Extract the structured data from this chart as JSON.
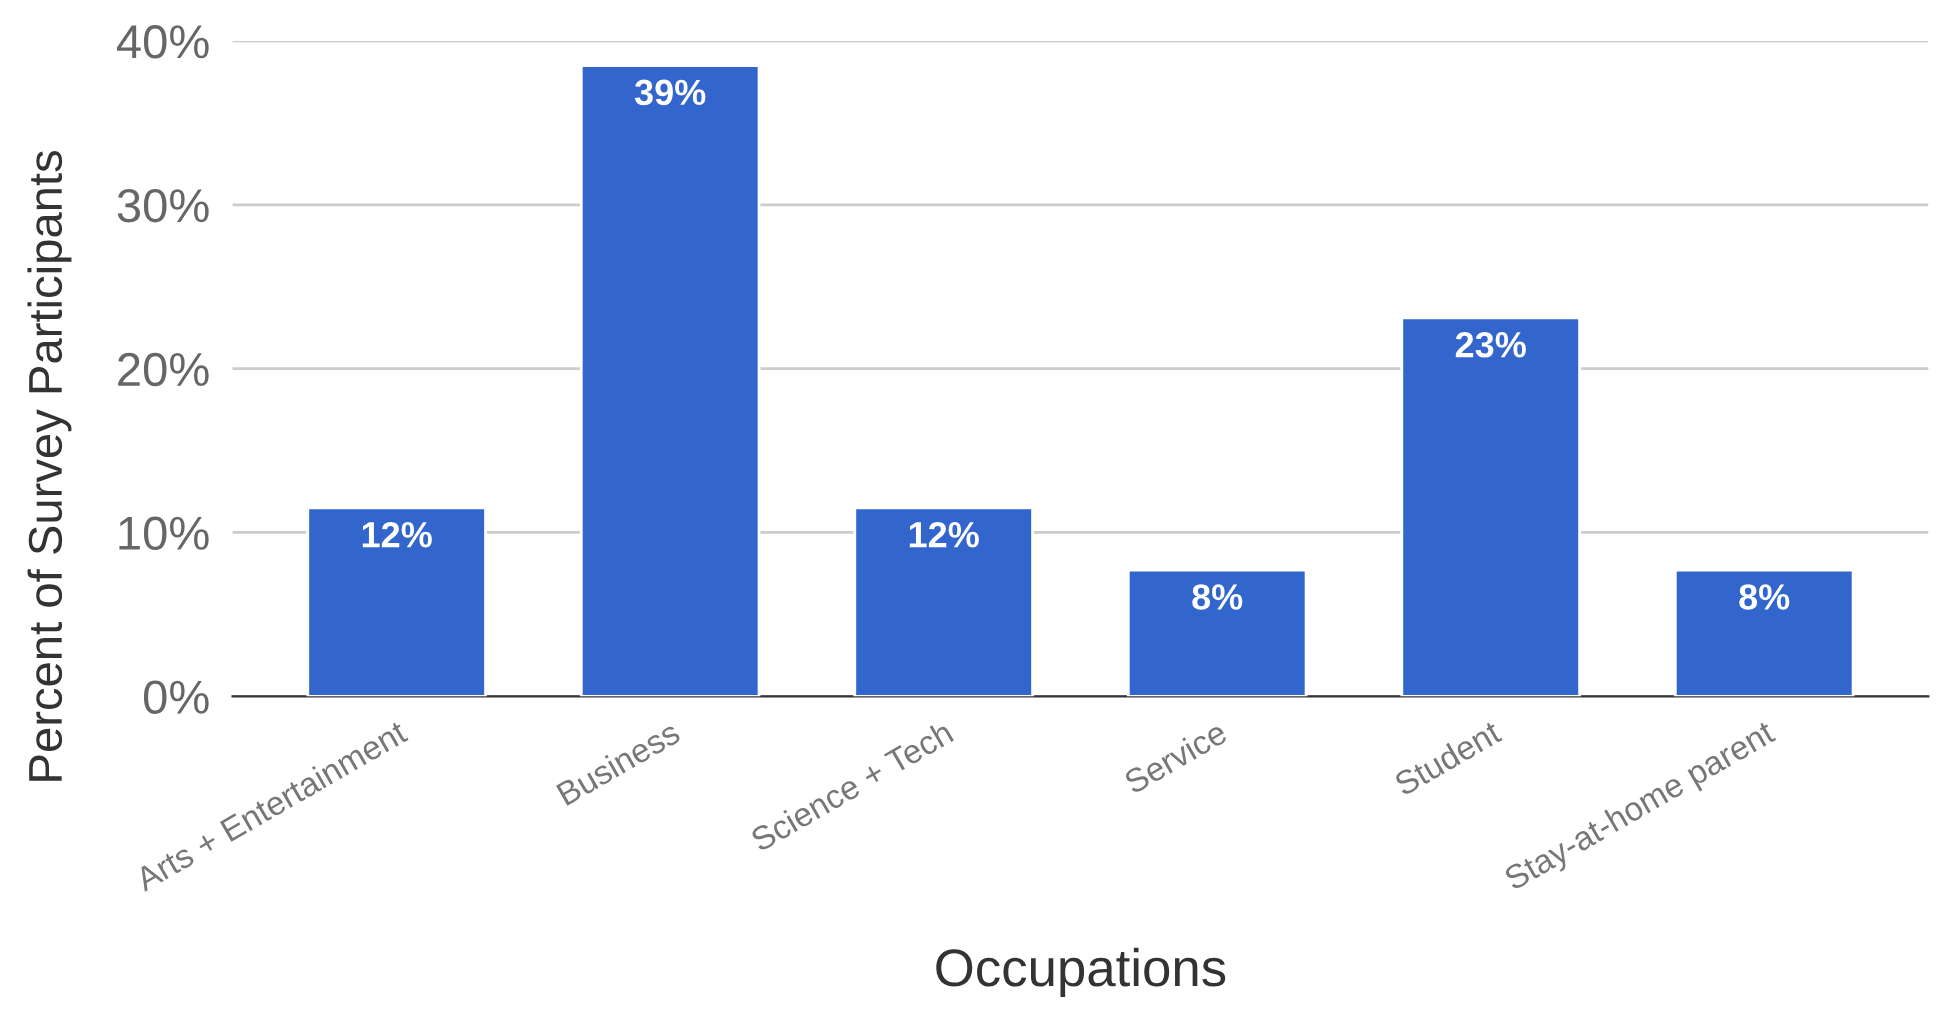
{
  "chart_data": {
    "type": "bar",
    "xlabel": "Occupations",
    "ylabel": "Percent of Survey Participants",
    "categories": [
      "Arts + Entertainment",
      "Business",
      "Science + Tech",
      "Service",
      "Student",
      "Stay-at-home parent"
    ],
    "values": [
      11.5,
      38.5,
      11.5,
      7.7,
      23.1,
      7.7
    ],
    "value_labels": [
      "12%",
      "39%",
      "12%",
      "8%",
      "23%",
      "8%"
    ],
    "color": "#3366cc",
    "ylim": [
      0,
      40
    ],
    "yticks": [
      {
        "value": 0,
        "label": "0%"
      },
      {
        "value": 10,
        "label": "10%"
      },
      {
        "value": 20,
        "label": "20%"
      },
      {
        "value": 30,
        "label": "30%"
      },
      {
        "value": 40,
        "label": "40%"
      }
    ],
    "grid": "y",
    "legend": false
  }
}
